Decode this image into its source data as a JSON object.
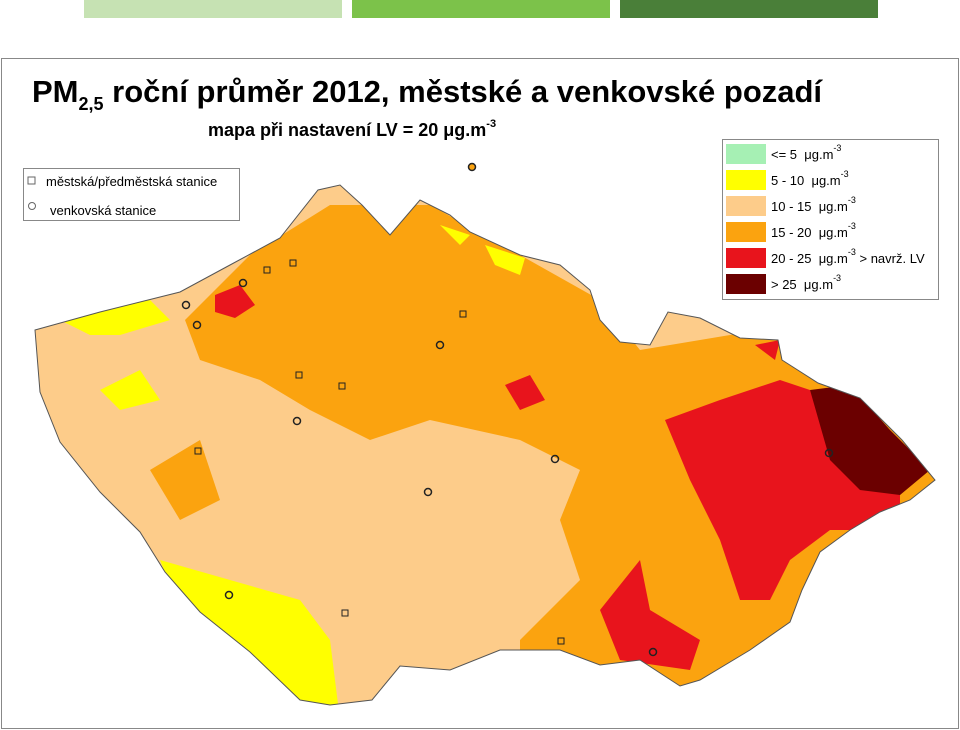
{
  "header": {
    "title": "PM",
    "title_sub": "2,5",
    "title_rest": " roční průměr 2012, městské a venkovské pozadí",
    "subtitle": "mapa při nastavení LV = 20 μg.m",
    "subtitle_sup": "-3"
  },
  "station_legend": [
    {
      "label": "městská/předměstská stanice"
    },
    {
      "label": "venkovská stanice"
    }
  ],
  "legend": [
    {
      "label": "<= 5  μg.m",
      "sup": "-3",
      "color": "#a6f0b4"
    },
    {
      "label": "5 - 10  μg.m",
      "sup": "-3",
      "color": "#ffff00"
    },
    {
      "label": "10 - 15  μg.m",
      "sup": "-3",
      "color": "#fdcc8a"
    },
    {
      "label": "15 - 20  μg.m",
      "sup": "-3",
      "color": "#fba30f"
    },
    {
      "label": "20 - 25  μg.m",
      "sup": "-3",
      "suffix": " > navrž. LV",
      "color": "#e8141c"
    },
    {
      "label": "> 25  μg.m",
      "sup": "-3",
      "color": "#6b0000"
    }
  ]
}
